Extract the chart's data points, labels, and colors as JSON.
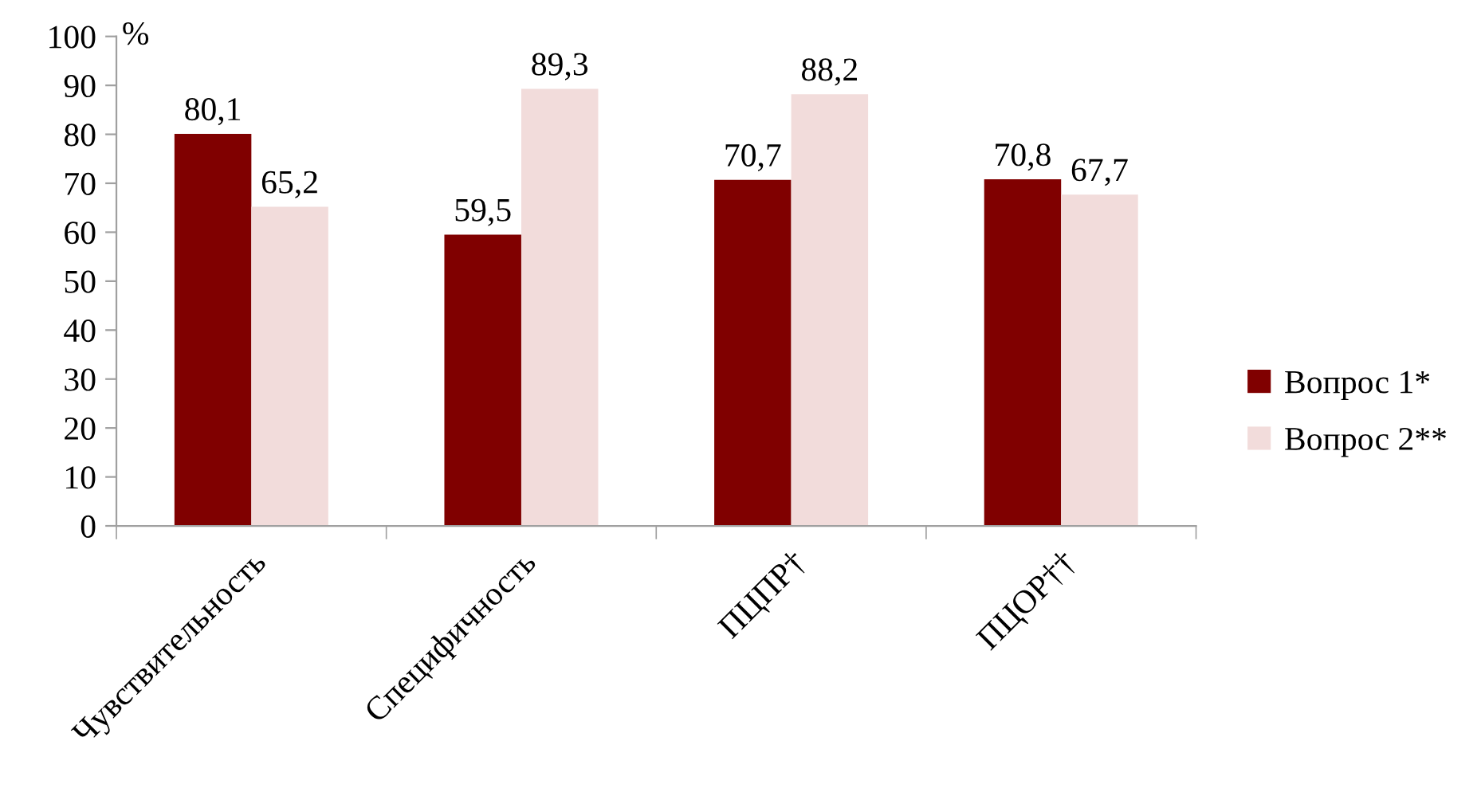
{
  "chart_data": {
    "type": "bar",
    "ylabel": "%",
    "categories": [
      "Чувствительность",
      "Специфичность",
      "ПЦПР†",
      "ПЦОР††"
    ],
    "series": [
      {
        "name": "Вопрос 1*",
        "color": "#800000",
        "values": [
          80.1,
          59.5,
          70.7,
          70.8
        ],
        "value_labels": [
          "80,1",
          "59,5",
          "70,7",
          "70,8"
        ]
      },
      {
        "name": "Вопрос 2**",
        "color": "#f2dcdb",
        "values": [
          65.2,
          89.3,
          88.2,
          67.7
        ],
        "value_labels": [
          "65,2",
          "89,3",
          "88,2",
          "67,7"
        ]
      }
    ],
    "ylim": [
      0,
      100
    ],
    "yticks": [
      0,
      10,
      20,
      30,
      40,
      50,
      60,
      70,
      80,
      90,
      100
    ],
    "grid": false,
    "legend": "right"
  }
}
